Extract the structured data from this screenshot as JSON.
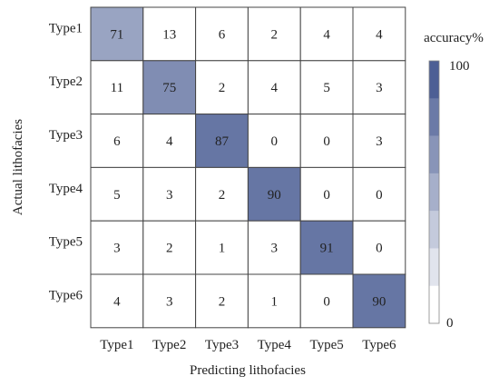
{
  "chart_data": {
    "type": "heatmap",
    "x_categories": [
      "Type1",
      "Type2",
      "Type3",
      "Type4",
      "Type5",
      "Type6"
    ],
    "y_categories": [
      "Type1",
      "Type2",
      "Type3",
      "Type4",
      "Type5",
      "Type6"
    ],
    "values": [
      [
        71,
        13,
        6,
        2,
        4,
        4
      ],
      [
        11,
        75,
        2,
        4,
        5,
        3
      ],
      [
        6,
        4,
        87,
        0,
        0,
        3
      ],
      [
        5,
        3,
        2,
        90,
        0,
        0
      ],
      [
        3,
        2,
        1,
        3,
        91,
        0
      ],
      [
        4,
        3,
        2,
        1,
        0,
        90
      ]
    ],
    "xlabel": "Predicting lithofacies",
    "ylabel": "Actual lithofacies",
    "colorbar": {
      "label": "accuracy%",
      "min": 0,
      "max": 100,
      "min_label": "0",
      "max_label": "100",
      "steps": 7,
      "color_low": "#ffffff",
      "color_high": "#4d5f95"
    },
    "grid": true,
    "legend": "right"
  }
}
